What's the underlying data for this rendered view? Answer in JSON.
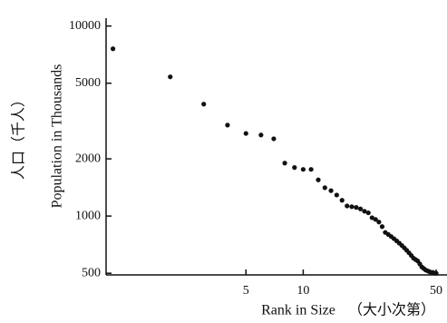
{
  "chart_data": {
    "type": "scatter",
    "x_label": "Rank in Size",
    "x_label_alt": "（大小次第）",
    "y_label": "Population in Thousands",
    "y_label_alt": "人口（千人）",
    "x": [
      1,
      2,
      3,
      4,
      5,
      6,
      7,
      8,
      9,
      10,
      11,
      12,
      13,
      14,
      15,
      16,
      17,
      18,
      19,
      20,
      21,
      22,
      23,
      24,
      25,
      26,
      27,
      28,
      29,
      30,
      31,
      32,
      33,
      34,
      35,
      36,
      37,
      38,
      39,
      40,
      41,
      42,
      43,
      44,
      45,
      46,
      47,
      48,
      49,
      50
    ],
    "values": [
      7590,
      5400,
      3880,
      3010,
      2720,
      2670,
      2550,
      1900,
      1800,
      1760,
      1760,
      1550,
      1410,
      1360,
      1290,
      1210,
      1130,
      1120,
      1110,
      1090,
      1060,
      1040,
      980,
      960,
      930,
      880,
      820,
      800,
      780,
      760,
      740,
      720,
      700,
      680,
      660,
      640,
      620,
      600,
      590,
      580,
      560,
      540,
      530,
      520,
      515,
      510,
      505,
      505,
      500,
      500
    ],
    "color": "#111111",
    "x_log": true,
    "y_log": true,
    "xlim": [
      0.92,
      57
    ],
    "ylim": [
      490,
      11000
    ],
    "xticks": [
      5,
      10,
      50
    ],
    "yticks": [
      500,
      1000,
      2000,
      5000,
      10000
    ]
  }
}
